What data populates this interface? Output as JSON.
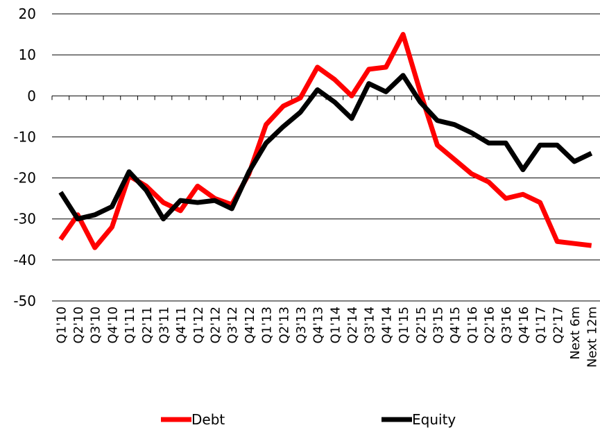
{
  "chart_data": {
    "type": "line",
    "categories": [
      "Q1'10",
      "Q2'10",
      "Q3'10",
      "Q4'10",
      "Q1'11",
      "Q2'11",
      "Q3'11",
      "Q4'11",
      "Q1'12",
      "Q2'12",
      "Q3'12",
      "Q4'12",
      "Q1'13",
      "Q2'13",
      "Q3'13",
      "Q4'13",
      "Q1'14",
      "Q2'14",
      "Q3'14",
      "Q4'14",
      "Q1'15",
      "Q2'15",
      "Q3'15",
      "Q4'15",
      "Q1'16",
      "Q2'16",
      "Q3'16",
      "Q4'16",
      "Q1'17",
      "Q2'17",
      "Next 6m",
      "Next 12m"
    ],
    "series": [
      {
        "name": "Debt",
        "color": "#ff0000",
        "values": [
          -35,
          -29,
          -37,
          -32,
          -19.5,
          -22,
          -26,
          -28,
          -22,
          -25,
          -26.5,
          -19,
          -7,
          -2.5,
          -0.5,
          7,
          4,
          0,
          6.5,
          7,
          15,
          1,
          -12,
          -15.5,
          -19,
          -21,
          -25,
          -24,
          -26,
          -35.5,
          -36,
          -36.5
        ]
      },
      {
        "name": "Equity",
        "color": "#000000",
        "values": [
          -23.5,
          -30,
          -29,
          -27,
          -18.5,
          -23,
          -30,
          -25.5,
          -26,
          -25.5,
          -27.5,
          -18.5,
          -11.5,
          -7.5,
          -4,
          1.5,
          -1.5,
          -5.5,
          3,
          1,
          5,
          -1.5,
          -6,
          -7,
          -9,
          -11.5,
          -11.5,
          -18,
          -12,
          -12,
          -16,
          -14
        ]
      }
    ],
    "ylim": [
      -50,
      20
    ],
    "yticks": [
      -50,
      -40,
      -30,
      -20,
      -10,
      0,
      10,
      20
    ],
    "grid": true,
    "legend": "bottom"
  }
}
